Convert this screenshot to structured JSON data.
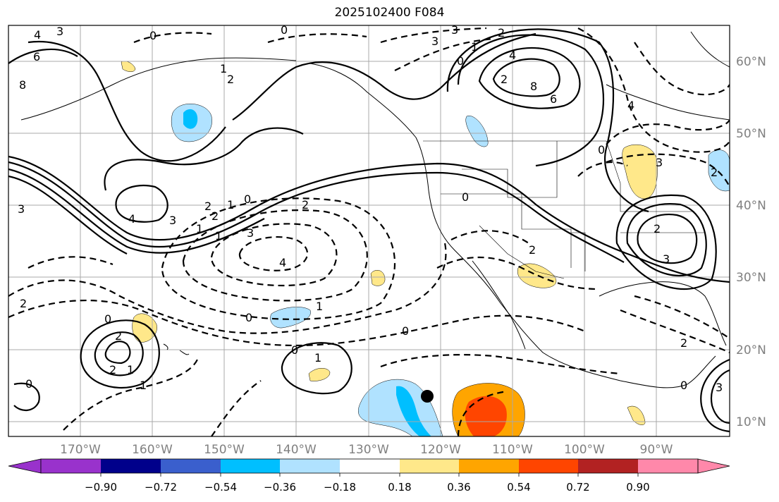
{
  "title": "2025102400 F084",
  "lon_labels": [
    "170°W",
    "160°W",
    "150°W",
    "140°W",
    "130°W",
    "120°W",
    "110°W",
    "100°W",
    "90°W"
  ],
  "lat_labels": [
    "60°N",
    "50°N",
    "40°N",
    "30°N",
    "20°N",
    "10°N"
  ],
  "colorbar": {
    "tick_labels": [
      "−0.90",
      "−0.72",
      "−0.54",
      "−0.36",
      "−0.18",
      "0.18",
      "0.36",
      "0.54",
      "0.72",
      "0.90"
    ],
    "colors": [
      "#9932cc",
      "#00008b",
      "#3a5fcd",
      "#00bfff",
      "#b0e2ff",
      "#ffffff",
      "#ffe88a",
      "#ffa500",
      "#ff4500",
      "#b22222",
      "#ff88aa"
    ]
  },
  "contour_labels": {
    "solid": [
      "4",
      "3",
      "6",
      "8",
      "0",
      "1",
      "2",
      "2",
      "1",
      "0",
      "4",
      "3",
      "2",
      "1",
      "0",
      "2",
      "4",
      "6",
      "8",
      "0",
      "3",
      "2",
      "1",
      "2",
      "1",
      "0",
      "1",
      "2",
      "3"
    ],
    "dashed": [
      "3",
      "0",
      "1",
      "2",
      "3",
      "4",
      "2",
      "3",
      "1",
      "0",
      "2",
      "1",
      "0",
      "0",
      "0",
      "3",
      "2",
      "4",
      "3",
      "2",
      "0",
      "0",
      "2"
    ]
  }
}
